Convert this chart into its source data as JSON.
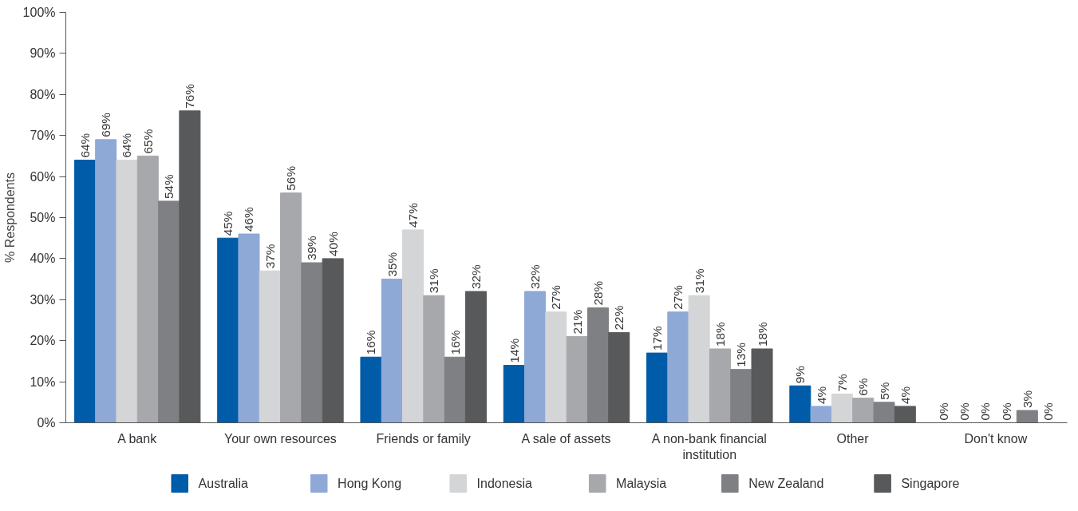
{
  "chart_data": {
    "type": "bar",
    "ylabel": "% Respondents",
    "categories": [
      "A bank",
      "Your own resources",
      "Friends or family",
      "A sale of assets",
      "A non-bank financial institution",
      "Other",
      "Don't know"
    ],
    "series": [
      {
        "name": "Australia",
        "color": "#005ca8",
        "values": [
          64,
          45,
          16,
          14,
          17,
          9,
          0
        ],
        "value_labels": [
          "64%",
          "45%",
          "16%",
          "14%",
          "17%",
          "9%",
          "0%"
        ]
      },
      {
        "name": "Hong Kong",
        "color": "#8fa9d6",
        "values": [
          69,
          46,
          35,
          32,
          27,
          4,
          0
        ],
        "value_labels": [
          "69%",
          "46%",
          "35%",
          "32%",
          "27%",
          "4%",
          "0%"
        ]
      },
      {
        "name": "Indonesia",
        "color": "#d4d5d7",
        "values": [
          64,
          37,
          47,
          27,
          31,
          7,
          0
        ],
        "value_labels": [
          "64%",
          "37%",
          "47%",
          "27%",
          "31%",
          "7%",
          "0%"
        ]
      },
      {
        "name": "Malaysia",
        "color": "#a7a8ab",
        "values": [
          65,
          56,
          31,
          21,
          18,
          6,
          0
        ],
        "value_labels": [
          "65%",
          "56%",
          "31%",
          "21%",
          "18%",
          "6%",
          "0%"
        ]
      },
      {
        "name": "New Zealand",
        "color": "#7f8083",
        "values": [
          54,
          39,
          16,
          28,
          13,
          5,
          3
        ],
        "value_labels": [
          "54%",
          "39%",
          "16%",
          "28%",
          "13%",
          "5%",
          "3%"
        ]
      },
      {
        "name": "Singapore",
        "color": "#58595b",
        "values": [
          76,
          40,
          32,
          22,
          18,
          4,
          0
        ],
        "value_labels": [
          "76%",
          "40%",
          "32%",
          "22%",
          "18%",
          "4%",
          "0%"
        ]
      }
    ],
    "ylim": [
      0,
      100
    ],
    "yticks": [
      {
        "value": 0,
        "label": "0%"
      },
      {
        "value": 10,
        "label": "10%"
      },
      {
        "value": 20,
        "label": "20%"
      },
      {
        "value": 30,
        "label": "30%"
      },
      {
        "value": 40,
        "label": "40%"
      },
      {
        "value": 50,
        "label": "50%"
      },
      {
        "value": 60,
        "label": "60%"
      },
      {
        "value": 70,
        "label": "70%"
      },
      {
        "value": 80,
        "label": "80%"
      },
      {
        "value": 90,
        "label": "90%"
      },
      {
        "value": 100,
        "label": "100%"
      }
    ],
    "grid": false,
    "legend": "bottom"
  }
}
